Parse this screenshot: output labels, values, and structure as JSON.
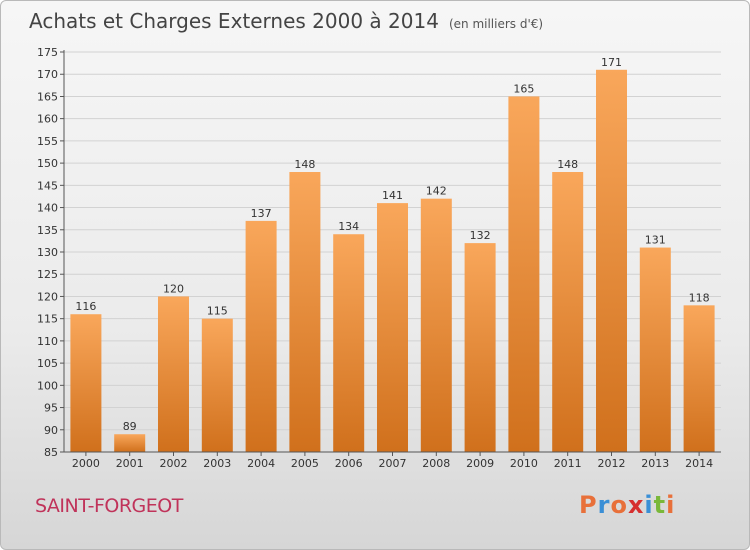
{
  "header": {
    "title": "Achats et Charges Externes 2000 à 2014",
    "unit": "(en milliers d'€)"
  },
  "footer": {
    "commune": "SAINT-FORGEOT",
    "brand": "Proxiti",
    "brand_colors": [
      "#e8703a",
      "#3a8fd6",
      "#e8703a",
      "#d62f2f",
      "#3a8fd6",
      "#7ab83a",
      "#e8703a"
    ]
  },
  "colors": {
    "bar_top": "#f9a75b",
    "bar_bottom": "#d0701c"
  },
  "chart_data": {
    "type": "bar",
    "categories": [
      "2000",
      "2001",
      "2002",
      "2003",
      "2004",
      "2005",
      "2006",
      "2007",
      "2008",
      "2009",
      "2010",
      "2011",
      "2012",
      "2013",
      "2014"
    ],
    "values": [
      116,
      89,
      120,
      115,
      137,
      148,
      134,
      141,
      142,
      132,
      165,
      148,
      171,
      131,
      118
    ],
    "title": "Achats et Charges Externes 2000 à 2014",
    "ylim": [
      85,
      175
    ],
    "yticks": [
      85,
      90,
      95,
      100,
      105,
      110,
      115,
      120,
      125,
      130,
      135,
      140,
      145,
      150,
      155,
      160,
      165,
      170,
      175
    ],
    "grid": true
  }
}
